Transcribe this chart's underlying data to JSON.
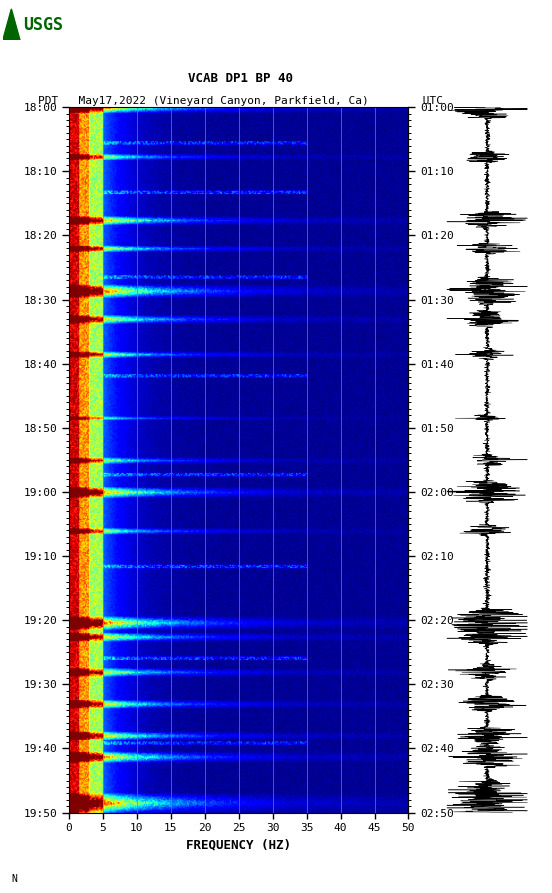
{
  "title_line1": "VCAB DP1 BP 40",
  "title_line2": "PDT   May17,2022 (Vineyard Canyon, Parkfield, Ca)        UTC",
  "xlabel": "FREQUENCY (HZ)",
  "left_yticks": [
    "18:00",
    "18:10",
    "18:20",
    "18:30",
    "18:40",
    "18:50",
    "19:00",
    "19:10",
    "19:20",
    "19:30",
    "19:40",
    "19:50"
  ],
  "right_yticks": [
    "01:00",
    "01:10",
    "01:20",
    "01:30",
    "01:40",
    "01:50",
    "02:00",
    "02:10",
    "02:20",
    "02:30",
    "02:40",
    "02:50"
  ],
  "xticks": [
    0,
    5,
    10,
    15,
    20,
    25,
    30,
    35,
    40,
    45,
    50
  ],
  "freq_lines": [
    5,
    10,
    15,
    20,
    25,
    30,
    35,
    40,
    45
  ],
  "bg_color": "#ffffff",
  "figsize": [
    5.52,
    8.93
  ],
  "dpi": 100,
  "n_time": 600,
  "n_freq": 300,
  "vline_color": "#888866",
  "usgs_color": "#006400",
  "watermark": "N"
}
